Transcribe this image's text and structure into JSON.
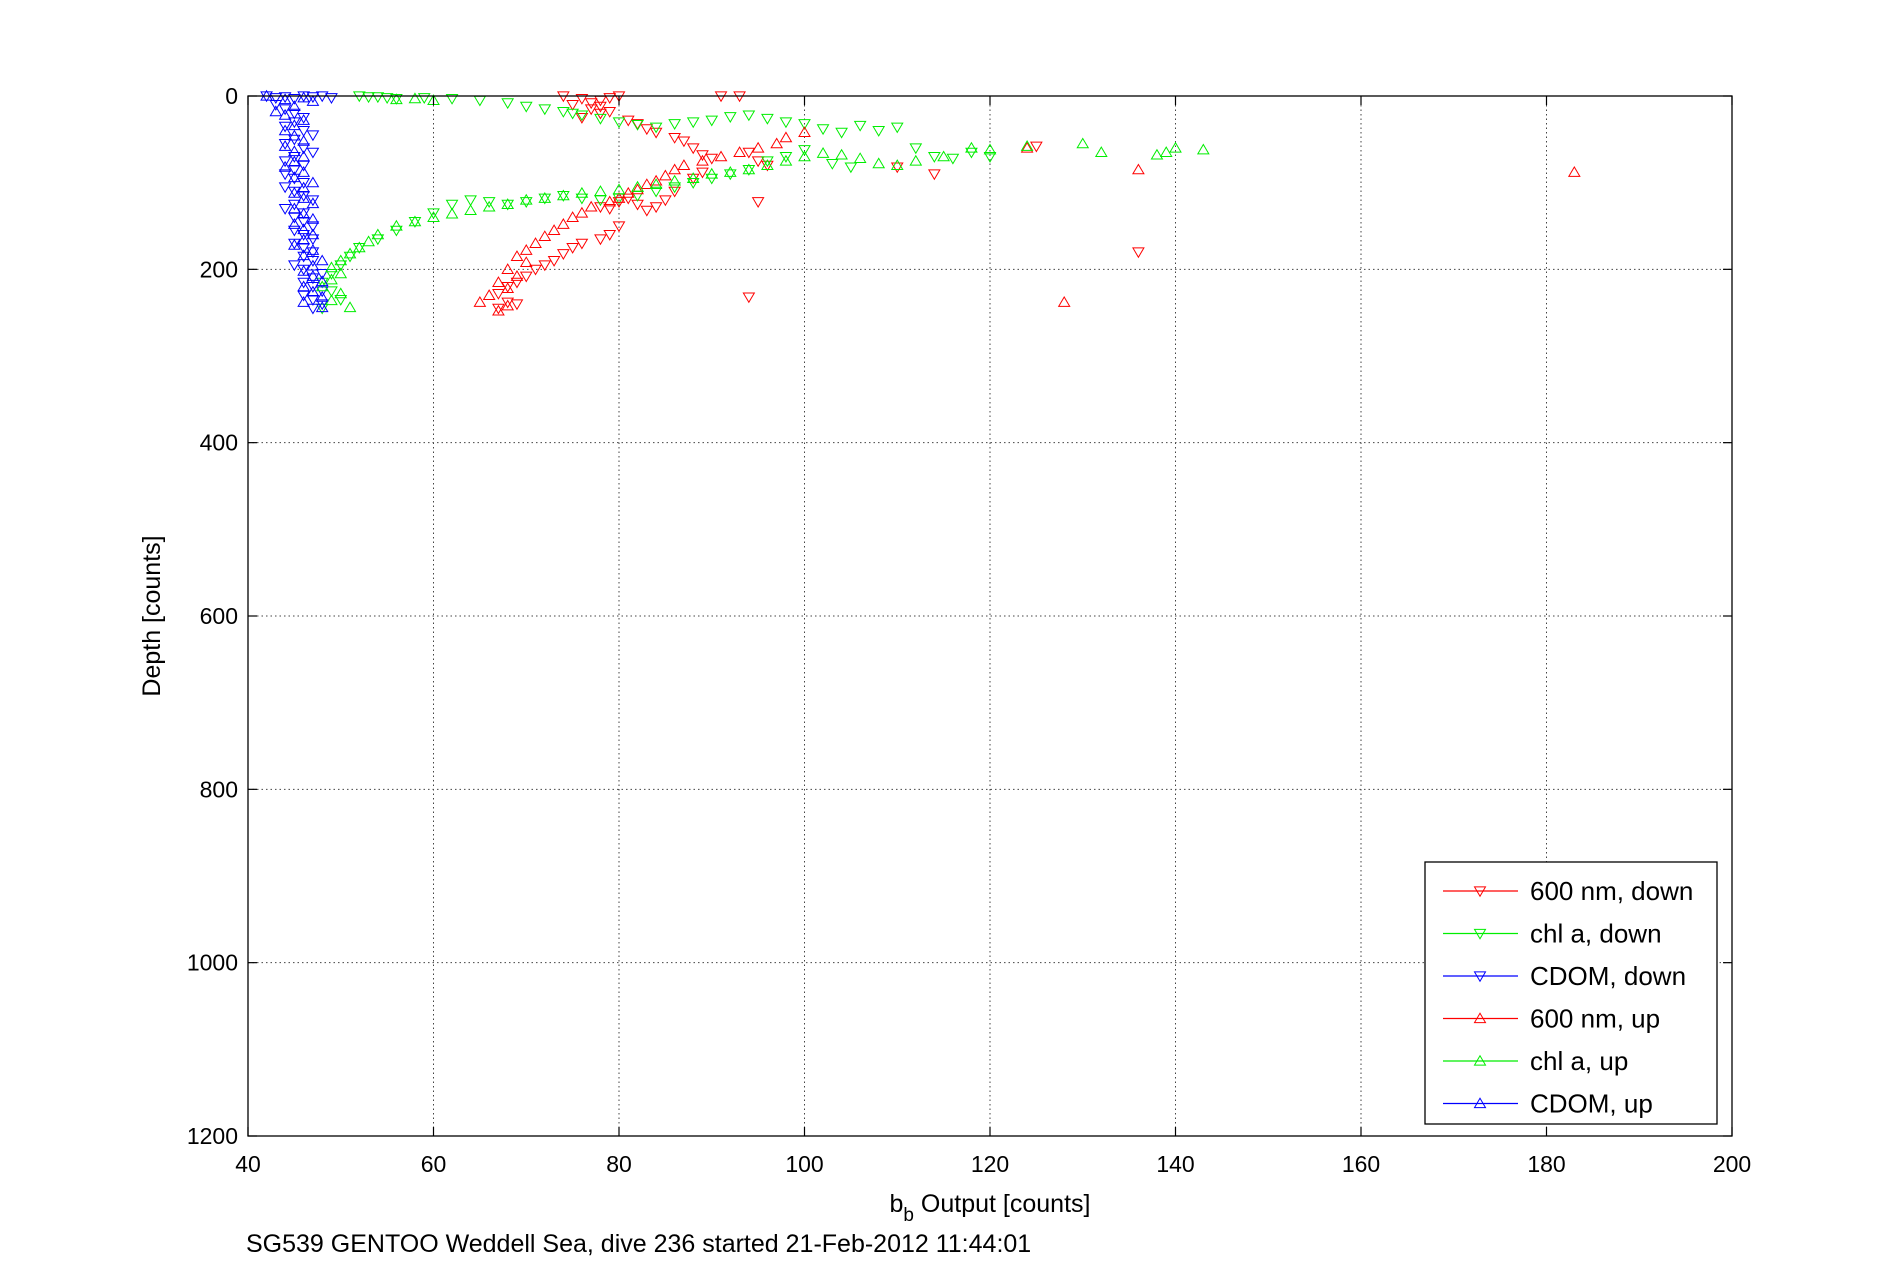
{
  "chart_data": {
    "type": "scatter",
    "xlabel_main": "b",
    "xlabel_sub": "b",
    "xlabel_rest": " Output [counts]",
    "ylabel": "Depth [counts]",
    "caption": "SG539 GENTOO Weddell Sea, dive 236 started 21-Feb-2012 11:44:01",
    "xlim": [
      40,
      200
    ],
    "ylim": [
      0,
      1200
    ],
    "y_reversed": true,
    "grid": true,
    "x_ticks": [
      "40",
      "60",
      "80",
      "100",
      "120",
      "140",
      "160",
      "180",
      "200"
    ],
    "y_ticks": [
      "0",
      "200",
      "400",
      "600",
      "800",
      "1000",
      "1200"
    ],
    "legend_position": "bottom-right",
    "series": [
      {
        "name": "600 nm, down",
        "color": "#ff0000",
        "marker": "triangle-down",
        "points": [
          [
            74,
            0
          ],
          [
            76,
            3
          ],
          [
            77,
            8
          ],
          [
            78,
            5
          ],
          [
            79,
            2
          ],
          [
            80,
            0
          ],
          [
            75,
            10
          ],
          [
            77,
            15
          ],
          [
            78,
            20
          ],
          [
            76,
            25
          ],
          [
            79,
            18
          ],
          [
            78,
            12
          ],
          [
            81,
            28
          ],
          [
            82,
            32
          ],
          [
            83,
            38
          ],
          [
            84,
            42
          ],
          [
            86,
            48
          ],
          [
            87,
            52
          ],
          [
            88,
            60
          ],
          [
            89,
            68
          ],
          [
            90,
            72
          ],
          [
            91,
            0
          ],
          [
            93,
            0
          ],
          [
            94,
            65
          ],
          [
            95,
            75
          ],
          [
            96,
            80
          ],
          [
            95,
            122
          ],
          [
            94,
            232
          ],
          [
            89,
            88
          ],
          [
            88,
            95
          ],
          [
            86,
            110
          ],
          [
            85,
            120
          ],
          [
            84,
            128
          ],
          [
            83,
            132
          ],
          [
            82,
            125
          ],
          [
            81,
            118
          ],
          [
            80,
            122
          ],
          [
            79,
            130
          ],
          [
            78,
            128
          ],
          [
            80,
            150
          ],
          [
            79,
            160
          ],
          [
            78,
            165
          ],
          [
            76,
            170
          ],
          [
            75,
            175
          ],
          [
            74,
            182
          ],
          [
            73,
            190
          ],
          [
            72,
            195
          ],
          [
            71,
            200
          ],
          [
            70,
            208
          ],
          [
            69,
            215
          ],
          [
            68,
            220
          ],
          [
            67,
            228
          ],
          [
            68,
            238
          ],
          [
            69,
            240
          ],
          [
            67,
            245
          ],
          [
            125,
            58
          ],
          [
            136,
            180
          ],
          [
            114,
            90
          ],
          [
            110,
            82
          ]
        ]
      },
      {
        "name": "chl a, down",
        "color": "#00ee00",
        "marker": "triangle-down",
        "points": [
          [
            52,
            0
          ],
          [
            53,
            1
          ],
          [
            54,
            1
          ],
          [
            55,
            2
          ],
          [
            56,
            3
          ],
          [
            59,
            2
          ],
          [
            62,
            3
          ],
          [
            65,
            5
          ],
          [
            68,
            8
          ],
          [
            70,
            12
          ],
          [
            72,
            15
          ],
          [
            74,
            18
          ],
          [
            75,
            20
          ],
          [
            76,
            22
          ],
          [
            78,
            26
          ],
          [
            80,
            30
          ],
          [
            82,
            33
          ],
          [
            84,
            36
          ],
          [
            86,
            32
          ],
          [
            88,
            30
          ],
          [
            90,
            28
          ],
          [
            92,
            24
          ],
          [
            94,
            22
          ],
          [
            96,
            26
          ],
          [
            98,
            30
          ],
          [
            100,
            32
          ],
          [
            102,
            38
          ],
          [
            104,
            42
          ],
          [
            106,
            34
          ],
          [
            108,
            40
          ],
          [
            110,
            36
          ],
          [
            112,
            60
          ],
          [
            114,
            70
          ],
          [
            116,
            72
          ],
          [
            118,
            65
          ],
          [
            120,
            70
          ],
          [
            100,
            62
          ],
          [
            98,
            70
          ],
          [
            96,
            75
          ],
          [
            94,
            85
          ],
          [
            92,
            90
          ],
          [
            90,
            95
          ],
          [
            88,
            100
          ],
          [
            86,
            105
          ],
          [
            84,
            110
          ],
          [
            82,
            115
          ],
          [
            80,
            118
          ],
          [
            78,
            120
          ],
          [
            76,
            118
          ],
          [
            74,
            115
          ],
          [
            72,
            118
          ],
          [
            70,
            122
          ],
          [
            68,
            125
          ],
          [
            66,
            122
          ],
          [
            64,
            120
          ],
          [
            62,
            125
          ],
          [
            60,
            135
          ],
          [
            58,
            145
          ],
          [
            56,
            155
          ],
          [
            54,
            165
          ],
          [
            52,
            175
          ],
          [
            51,
            185
          ],
          [
            50,
            195
          ],
          [
            49,
            205
          ],
          [
            48,
            215
          ],
          [
            49,
            225
          ],
          [
            50,
            235
          ],
          [
            48,
            245
          ],
          [
            103,
            78
          ],
          [
            105,
            82
          ]
        ]
      },
      {
        "name": "CDOM, down",
        "color": "#0000ff",
        "marker": "triangle-down",
        "points": [
          [
            42,
            0
          ],
          [
            43,
            2
          ],
          [
            44,
            1
          ],
          [
            45,
            3
          ],
          [
            46,
            0
          ],
          [
            47,
            1
          ],
          [
            48,
            0
          ],
          [
            49,
            2
          ],
          [
            43,
            10
          ],
          [
            44,
            15
          ],
          [
            45,
            20
          ],
          [
            46,
            25
          ],
          [
            45,
            30
          ],
          [
            44,
            35
          ],
          [
            46,
            40
          ],
          [
            47,
            45
          ],
          [
            45,
            50
          ],
          [
            44,
            55
          ],
          [
            46,
            60
          ],
          [
            47,
            65
          ],
          [
            45,
            70
          ],
          [
            44,
            75
          ],
          [
            46,
            80
          ],
          [
            45,
            85
          ],
          [
            44,
            90
          ],
          [
            45,
            95
          ],
          [
            46,
            100
          ],
          [
            44,
            105
          ],
          [
            45,
            110
          ],
          [
            46,
            115
          ],
          [
            47,
            120
          ],
          [
            45,
            125
          ],
          [
            44,
            130
          ],
          [
            46,
            135
          ],
          [
            45,
            140
          ],
          [
            46,
            145
          ],
          [
            47,
            150
          ],
          [
            45,
            155
          ],
          [
            46,
            160
          ],
          [
            47,
            165
          ],
          [
            45,
            170
          ],
          [
            46,
            175
          ],
          [
            47,
            180
          ],
          [
            46,
            185
          ],
          [
            47,
            190
          ],
          [
            45,
            195
          ],
          [
            46,
            200
          ],
          [
            48,
            205
          ],
          [
            47,
            210
          ],
          [
            46,
            215
          ],
          [
            47,
            220
          ],
          [
            48,
            225
          ],
          [
            46,
            230
          ],
          [
            47,
            235
          ],
          [
            48,
            240
          ],
          [
            47,
            245
          ]
        ]
      },
      {
        "name": "600 nm, up",
        "color": "#ff0000",
        "marker": "triangle-up",
        "points": [
          [
            183,
            88
          ],
          [
            128,
            238
          ],
          [
            136,
            85
          ],
          [
            124,
            60
          ],
          [
            100,
            42
          ],
          [
            98,
            48
          ],
          [
            97,
            55
          ],
          [
            95,
            60
          ],
          [
            93,
            65
          ],
          [
            91,
            70
          ],
          [
            89,
            75
          ],
          [
            87,
            80
          ],
          [
            86,
            85
          ],
          [
            85,
            92
          ],
          [
            84,
            98
          ],
          [
            83,
            102
          ],
          [
            82,
            108
          ],
          [
            81,
            112
          ],
          [
            80,
            118
          ],
          [
            79,
            122
          ],
          [
            77,
            128
          ],
          [
            76,
            135
          ],
          [
            75,
            140
          ],
          [
            74,
            148
          ],
          [
            73,
            155
          ],
          [
            72,
            162
          ],
          [
            71,
            170
          ],
          [
            70,
            178
          ],
          [
            69,
            185
          ],
          [
            70,
            192
          ],
          [
            68,
            200
          ],
          [
            69,
            208
          ],
          [
            67,
            215
          ],
          [
            68,
            222
          ],
          [
            66,
            230
          ],
          [
            65,
            238
          ],
          [
            68,
            242
          ],
          [
            67,
            248
          ]
        ]
      },
      {
        "name": "chl a, up",
        "color": "#00ee00",
        "marker": "triangle-up",
        "points": [
          [
            143,
            62
          ],
          [
            140,
            60
          ],
          [
            139,
            65
          ],
          [
            138,
            68
          ],
          [
            132,
            65
          ],
          [
            130,
            55
          ],
          [
            124,
            58
          ],
          [
            120,
            62
          ],
          [
            118,
            60
          ],
          [
            115,
            70
          ],
          [
            112,
            75
          ],
          [
            110,
            80
          ],
          [
            108,
            78
          ],
          [
            106,
            72
          ],
          [
            104,
            68
          ],
          [
            102,
            66
          ],
          [
            100,
            70
          ],
          [
            98,
            75
          ],
          [
            96,
            80
          ],
          [
            94,
            85
          ],
          [
            92,
            88
          ],
          [
            90,
            90
          ],
          [
            88,
            95
          ],
          [
            86,
            98
          ],
          [
            84,
            102
          ],
          [
            82,
            105
          ],
          [
            80,
            108
          ],
          [
            78,
            110
          ],
          [
            76,
            112
          ],
          [
            74,
            115
          ],
          [
            72,
            118
          ],
          [
            70,
            120
          ],
          [
            68,
            125
          ],
          [
            66,
            128
          ],
          [
            64,
            132
          ],
          [
            62,
            136
          ],
          [
            60,
            140
          ],
          [
            58,
            145
          ],
          [
            56,
            150
          ],
          [
            54,
            160
          ],
          [
            53,
            168
          ],
          [
            52,
            175
          ],
          [
            51,
            182
          ],
          [
            50,
            190
          ],
          [
            49,
            198
          ],
          [
            50,
            205
          ],
          [
            49,
            212
          ],
          [
            48,
            220
          ],
          [
            50,
            228
          ],
          [
            49,
            236
          ],
          [
            51,
            244
          ],
          [
            60,
            5
          ],
          [
            58,
            3
          ],
          [
            56,
            4
          ]
        ]
      },
      {
        "name": "CDOM, up",
        "color": "#0000ff",
        "marker": "triangle-up",
        "points": [
          [
            42,
            0
          ],
          [
            44,
            4
          ],
          [
            46,
            2
          ],
          [
            47,
            6
          ],
          [
            45,
            12
          ],
          [
            43,
            18
          ],
          [
            44,
            22
          ],
          [
            46,
            28
          ],
          [
            45,
            34
          ],
          [
            44,
            40
          ],
          [
            45,
            46
          ],
          [
            46,
            52
          ],
          [
            44,
            58
          ],
          [
            45,
            64
          ],
          [
            46,
            70
          ],
          [
            45,
            76
          ],
          [
            44,
            82
          ],
          [
            46,
            88
          ],
          [
            45,
            94
          ],
          [
            47,
            100
          ],
          [
            46,
            106
          ],
          [
            45,
            112
          ],
          [
            46,
            118
          ],
          [
            47,
            124
          ],
          [
            45,
            130
          ],
          [
            46,
            136
          ],
          [
            47,
            142
          ],
          [
            45,
            148
          ],
          [
            46,
            154
          ],
          [
            47,
            160
          ],
          [
            46,
            166
          ],
          [
            45,
            172
          ],
          [
            47,
            178
          ],
          [
            46,
            184
          ],
          [
            48,
            190
          ],
          [
            47,
            196
          ],
          [
            46,
            202
          ],
          [
            47,
            208
          ],
          [
            48,
            214
          ],
          [
            46,
            220
          ],
          [
            47,
            226
          ],
          [
            48,
            232
          ],
          [
            46,
            238
          ],
          [
            48,
            244
          ]
        ]
      }
    ]
  }
}
